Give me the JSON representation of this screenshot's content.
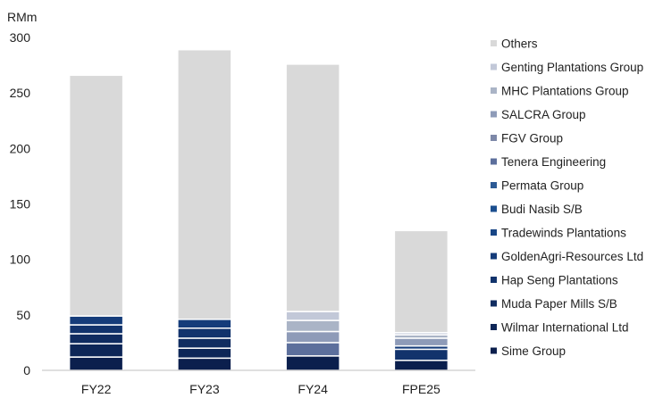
{
  "chart_data": {
    "type": "bar",
    "stacked": true,
    "unit_label": "RMm",
    "categories": [
      "FY22",
      "FY23",
      "FY24",
      "FPE25"
    ],
    "ylim": [
      0,
      300
    ],
    "yticks": [
      0,
      50,
      100,
      150,
      200,
      250,
      300
    ],
    "grid": false,
    "legend_position": "right",
    "series": [
      {
        "name": "Sime Group",
        "color": "#0b1f4d",
        "values": [
          12,
          11,
          13,
          9
        ]
      },
      {
        "name": "Wilmar International Ltd",
        "color": "#0d2657",
        "values": [
          12,
          9,
          0,
          0
        ]
      },
      {
        "name": "Muda Paper Mills S/B",
        "color": "#102c60",
        "values": [
          9,
          9,
          0,
          0
        ]
      },
      {
        "name": "Hap Seng Plantations",
        "color": "#12336c",
        "values": [
          8,
          9,
          0,
          10
        ]
      },
      {
        "name": "GoldenAgri-Resources Ltd",
        "color": "#153c7a",
        "values": [
          8,
          8,
          0,
          3
        ]
      },
      {
        "name": "Tradewinds Plantations",
        "color": "#184686",
        "values": [
          0,
          0,
          0,
          0
        ]
      },
      {
        "name": "Budi Nasib S/B",
        "color": "#1b4e8e",
        "values": [
          0,
          0,
          0,
          0
        ]
      },
      {
        "name": "Permata Group",
        "color": "#2d5b95",
        "values": [
          0,
          0,
          0,
          0
        ]
      },
      {
        "name": "Tenera Engineering",
        "color": "#5c6f9c",
        "values": [
          0,
          0,
          12,
          0
        ]
      },
      {
        "name": "FGV Group",
        "color": "#7d88a8",
        "values": [
          0,
          0,
          0,
          0
        ]
      },
      {
        "name": "SALCRA Group",
        "color": "#8e9bb8",
        "values": [
          0,
          0,
          10,
          7
        ]
      },
      {
        "name": "MHC Plantations Group",
        "color": "#aab4c6",
        "values": [
          0,
          0,
          10,
          3
        ]
      },
      {
        "name": "Genting Plantations Group",
        "color": "#c2c8d8",
        "values": [
          0,
          0,
          8,
          2
        ]
      },
      {
        "name": "Others",
        "color": "#d9d9d9",
        "values": [
          217,
          243,
          223,
          92
        ]
      }
    ]
  }
}
